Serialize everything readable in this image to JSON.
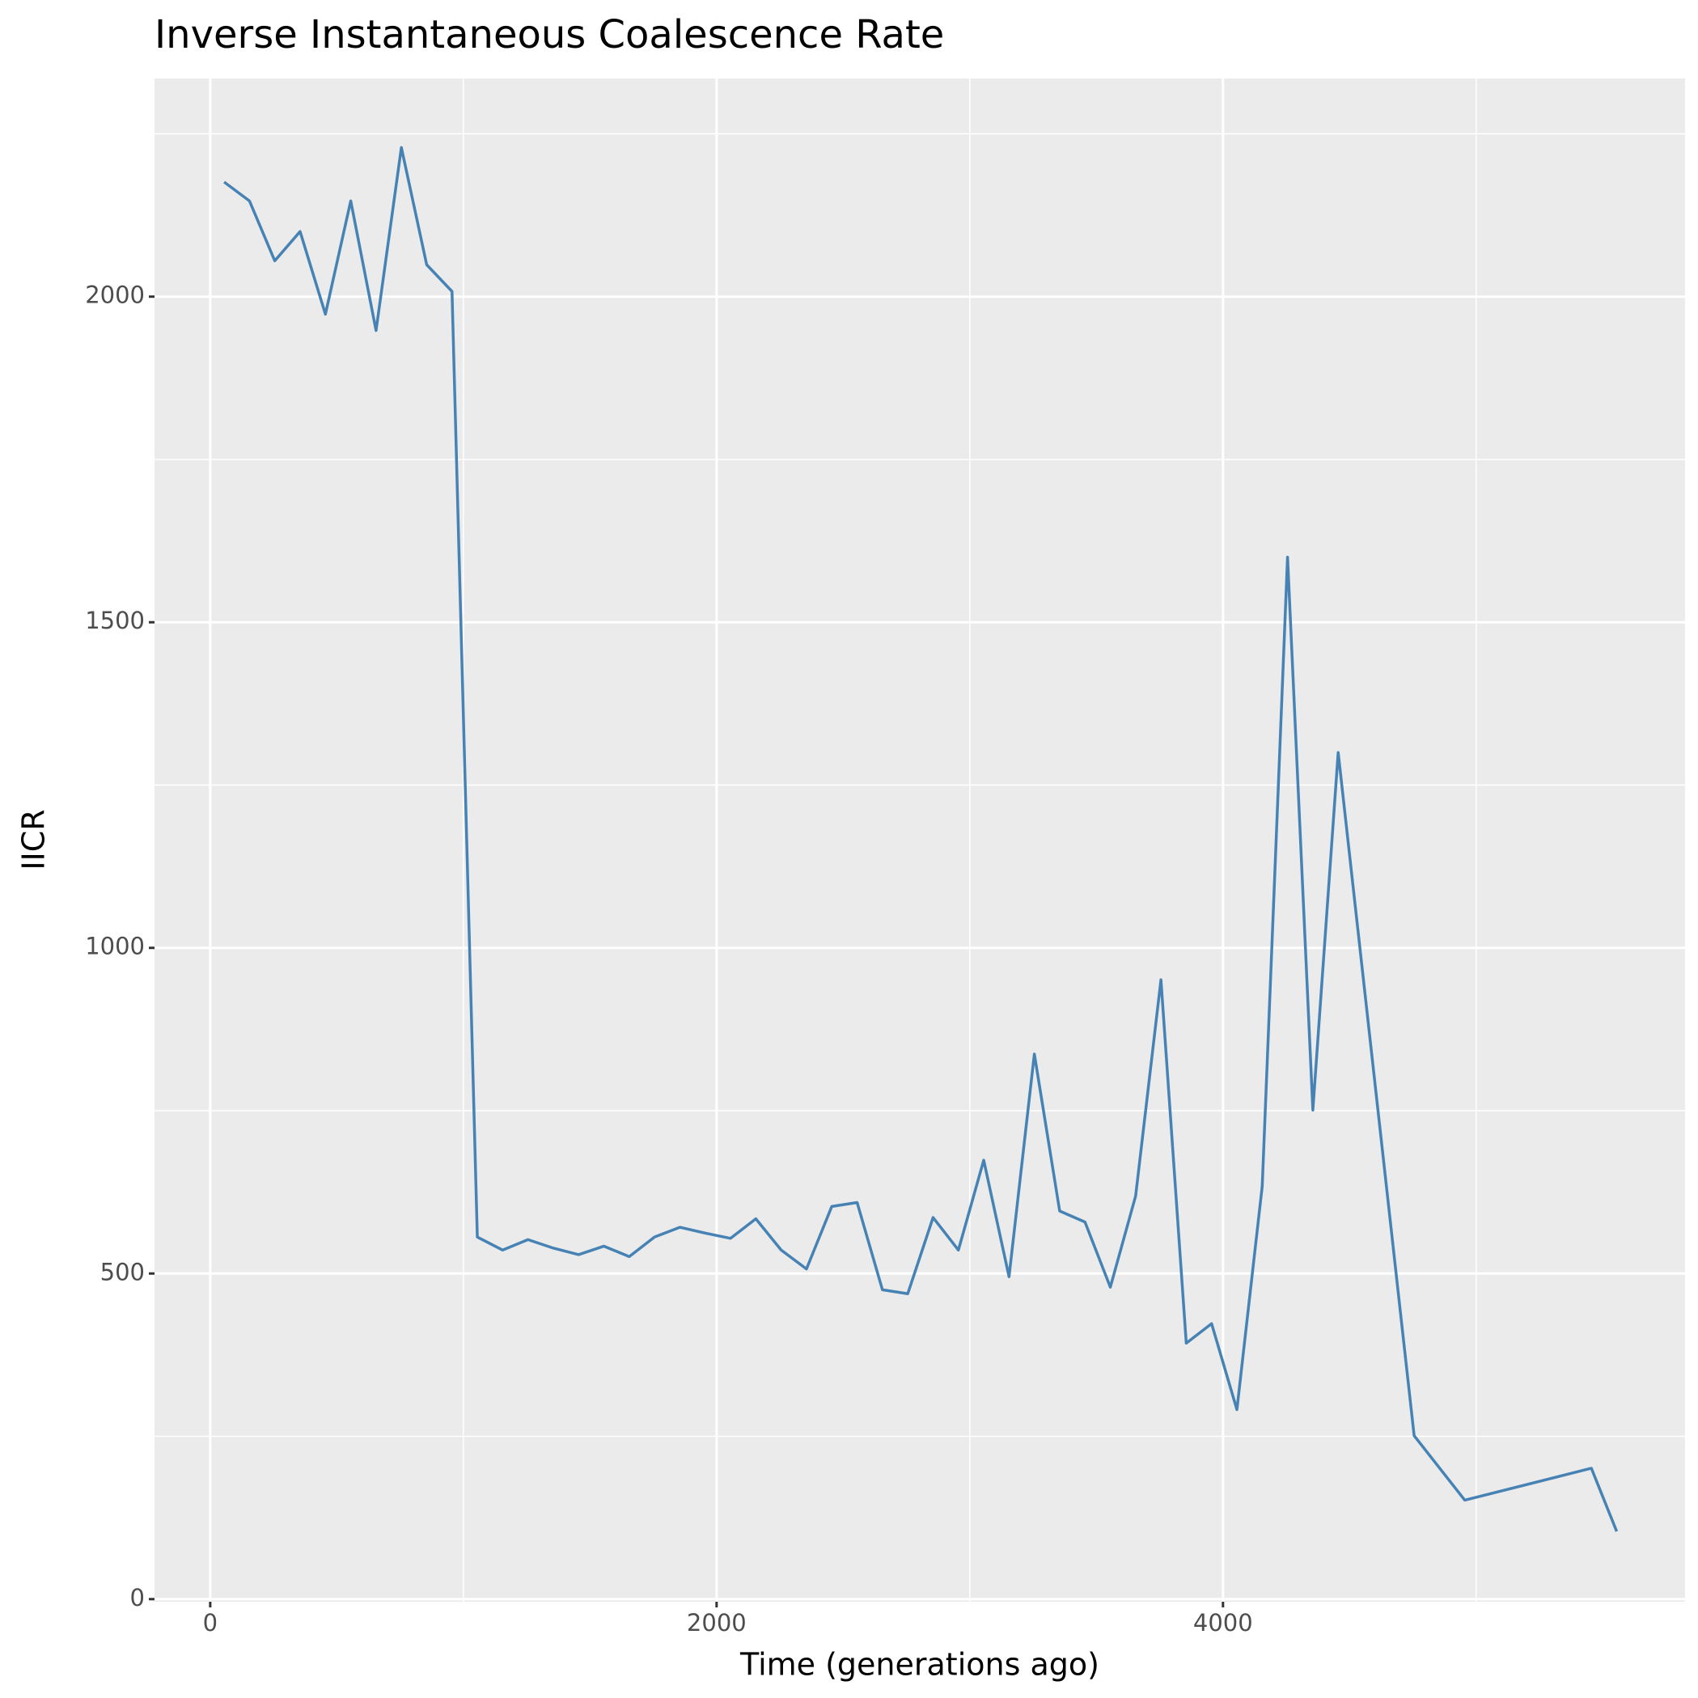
{
  "chart_data": {
    "type": "line",
    "title": "Inverse Instantaneous Coalescence Rate",
    "x_label": "Time (generations ago)",
    "y_label": "IICR",
    "x": [
      55,
      155,
      255,
      355,
      455,
      555,
      655,
      755,
      855,
      955,
      1055,
      1155,
      1255,
      1355,
      1455,
      1555,
      1655,
      1755,
      1855,
      1955,
      2055,
      2155,
      2255,
      2355,
      2455,
      2555,
      2655,
      2755,
      2855,
      2955,
      3055,
      3155,
      3255,
      3355,
      3455,
      3555,
      3655,
      3755,
      3855,
      3955,
      4055,
      4155,
      4255,
      4355,
      4455,
      4755,
      4955,
      5455,
      5555
    ],
    "series": [
      {
        "name": "IICR",
        "color": "#4682b4",
        "values": [
          2176,
          2147,
          2055,
          2100,
          1973,
          2147,
          1948,
          2229,
          2049,
          2008,
          556,
          536,
          552,
          539,
          529,
          542,
          526,
          556,
          571,
          562,
          554,
          584,
          536,
          507,
          603,
          609,
          475,
          469,
          586,
          536,
          674,
          495,
          837,
          596,
          579,
          479,
          619,
          951,
          393,
          423,
          291,
          634,
          1600,
          751,
          1300,
          251,
          152,
          201,
          104
        ]
      }
    ],
    "xlim": [
      -220,
      5825
    ],
    "ylim": [
      -4,
      2335
    ],
    "xticks": [
      0,
      2000,
      4000
    ],
    "yticks": [
      0,
      500,
      1000,
      1500,
      2000
    ],
    "grid": true
  }
}
